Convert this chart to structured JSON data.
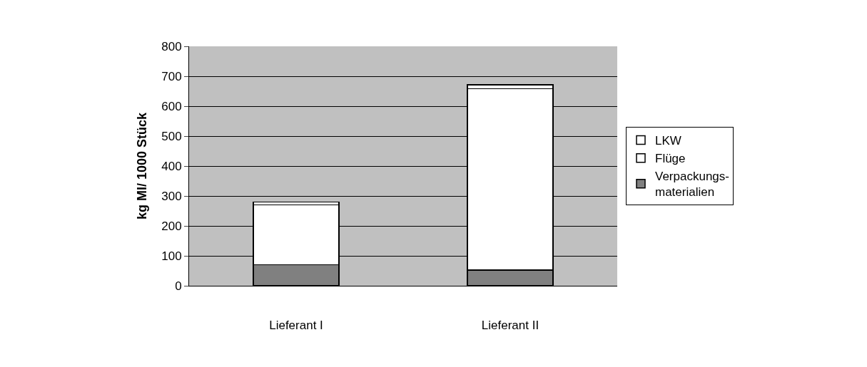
{
  "chart_data": {
    "type": "bar",
    "stacked": true,
    "ylabel": "kg MI/ 1000 Stück",
    "categories": [
      "Lieferant I",
      "Lieferant II"
    ],
    "series": [
      {
        "name": "Verpackungs-materialien",
        "color": "#808080",
        "values": [
          70,
          52
        ]
      },
      {
        "name": "Flüge",
        "color": "#ffffff",
        "values": [
          200,
          606
        ]
      },
      {
        "name": "LKW",
        "color": "#ffffff",
        "values": [
          10,
          13
        ]
      }
    ],
    "ylim": [
      0,
      800
    ],
    "yticks": [
      0,
      100,
      200,
      300,
      400,
      500,
      600,
      700,
      800
    ],
    "grid": "y",
    "legend": "right"
  }
}
